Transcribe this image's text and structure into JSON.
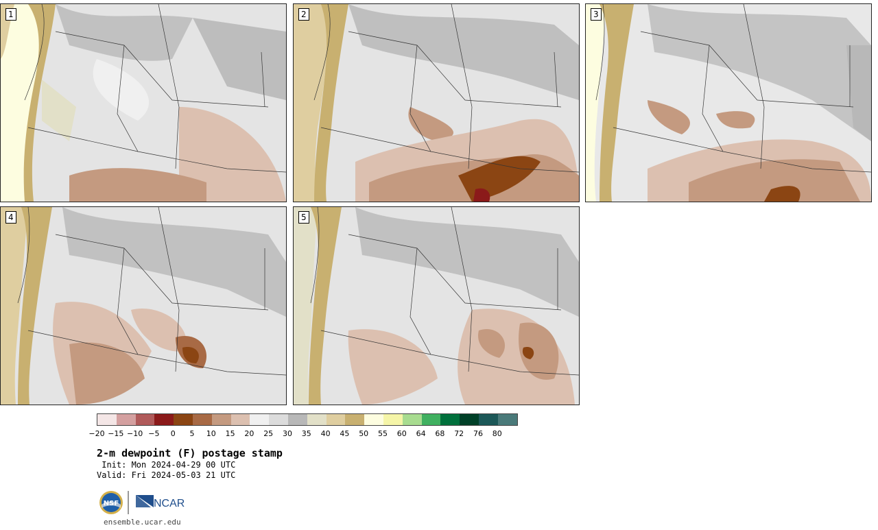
{
  "panels": [
    {
      "label": "1"
    },
    {
      "label": "2"
    },
    {
      "label": "3"
    },
    {
      "label": "4"
    },
    {
      "label": "5"
    }
  ],
  "colorbar": {
    "colors": [
      "#f4e6e6",
      "#d4a0a0",
      "#b05a5a",
      "#8b1a1a",
      "#8b4513",
      "#a86a45",
      "#c49a80",
      "#dcc0b0",
      "#f0f0f0",
      "#dcdcdc",
      "#b8b8b8",
      "#e2e0c8",
      "#dfcea0",
      "#c8b070",
      "#fdfde0",
      "#f5f5a8",
      "#a8dc90",
      "#40b060",
      "#00703c",
      "#004028",
      "#1c5858",
      "#4a7a7a"
    ],
    "tick_labels": [
      "−20",
      "−15",
      "−10",
      "−5",
      "0",
      "5",
      "10",
      "15",
      "20",
      "25",
      "30",
      "35",
      "40",
      "45",
      "50",
      "55",
      "60",
      "64",
      "68",
      "72",
      "76",
      "80"
    ]
  },
  "title": "2-m dewpoint (F) postage stamp",
  "init": " Init: Mon 2024-04-29 00 UTC",
  "valid": "Valid: Fri 2024-05-03 21 UTC",
  "logos": {
    "nsf_text": "NSF",
    "ncar_text": "NCAR"
  },
  "site": "ensemble.ucar.edu"
}
